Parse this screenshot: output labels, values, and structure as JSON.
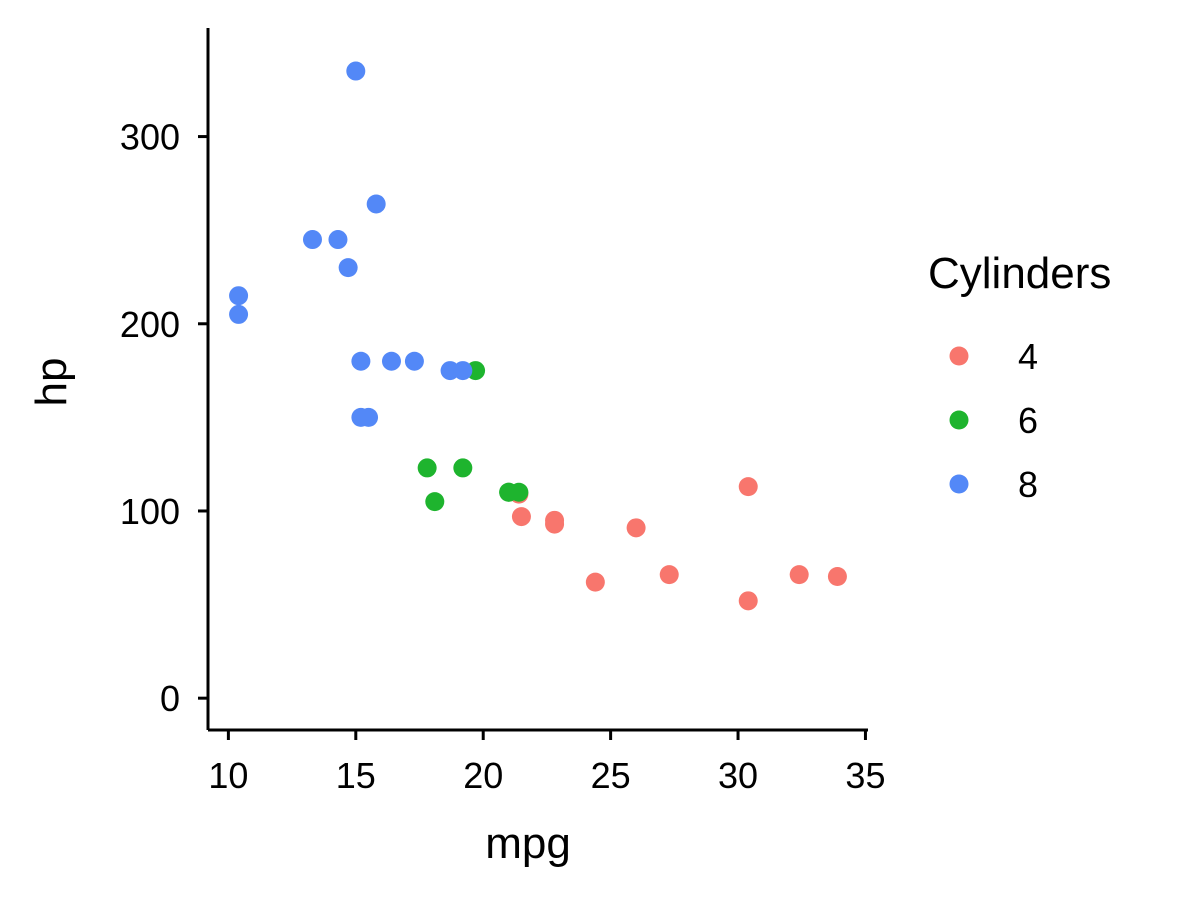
{
  "chart_data": {
    "type": "scatter",
    "xlabel": "mpg",
    "ylabel": "hp",
    "xlim": [
      9.2,
      35.1
    ],
    "ylim": [
      -17,
      358
    ],
    "x_ticks": [
      10,
      15,
      20,
      25,
      30,
      35
    ],
    "y_ticks": [
      0,
      100,
      200,
      300
    ],
    "grid": false,
    "legend": {
      "title": "Cylinders",
      "placement": "right"
    },
    "series": [
      {
        "name": "4",
        "color": "#F8766D",
        "points": [
          [
            22.8,
            93
          ],
          [
            24.4,
            62
          ],
          [
            22.8,
            95
          ],
          [
            32.4,
            66
          ],
          [
            30.4,
            52
          ],
          [
            33.9,
            65
          ],
          [
            21.5,
            97
          ],
          [
            27.3,
            66
          ],
          [
            26.0,
            91
          ],
          [
            30.4,
            113
          ],
          [
            21.4,
            109
          ]
        ]
      },
      {
        "name": "6",
        "color": "#1EB42E",
        "points": [
          [
            21.0,
            110
          ],
          [
            21.0,
            110
          ],
          [
            21.4,
            110
          ],
          [
            18.1,
            105
          ],
          [
            19.2,
            123
          ],
          [
            17.8,
            123
          ],
          [
            19.7,
            175
          ]
        ]
      },
      {
        "name": "8",
        "color": "#5388F7",
        "points": [
          [
            18.7,
            175
          ],
          [
            14.3,
            245
          ],
          [
            16.4,
            180
          ],
          [
            17.3,
            180
          ],
          [
            15.2,
            180
          ],
          [
            10.4,
            205
          ],
          [
            10.4,
            215
          ],
          [
            14.7,
            230
          ],
          [
            15.5,
            150
          ],
          [
            15.2,
            150
          ],
          [
            13.3,
            245
          ],
          [
            19.2,
            175
          ],
          [
            15.8,
            264
          ],
          [
            15.0,
            335
          ]
        ]
      }
    ]
  }
}
